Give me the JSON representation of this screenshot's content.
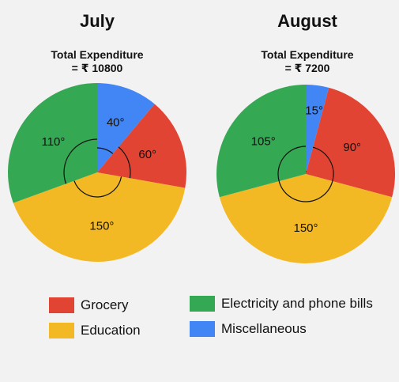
{
  "chart_data": [
    {
      "type": "pie",
      "title": "July",
      "subtitle": "Total Expenditure",
      "total_text": "= ₹ 10800",
      "slices": [
        {
          "name": "Miscellaneous",
          "angle": 40,
          "label": "40°",
          "color": "#4285f4"
        },
        {
          "name": "Grocery",
          "angle": 60,
          "label": "60°",
          "color": "#e24434"
        },
        {
          "name": "Education",
          "angle": 150,
          "label": "150°",
          "color": "#f2b925"
        },
        {
          "name": "Electricity and phone bills",
          "angle": 110,
          "label": "110°",
          "color": "#35a853"
        }
      ]
    },
    {
      "type": "pie",
      "title": "August",
      "subtitle": "Total Expenditure",
      "total_text": "= ₹ 7200",
      "slices": [
        {
          "name": "Miscellaneous",
          "angle": 15,
          "label": "15°",
          "color": "#4285f4"
        },
        {
          "name": "Grocery",
          "angle": 90,
          "label": "90°",
          "color": "#e24434"
        },
        {
          "name": "Education",
          "angle": 150,
          "label": "150°",
          "color": "#f2b925"
        },
        {
          "name": "Electricity and phone bills",
          "angle": 105,
          "label": "105°",
          "color": "#35a853"
        }
      ]
    }
  ],
  "legend": [
    {
      "label": "Grocery",
      "color": "#e24434"
    },
    {
      "label": "Education",
      "color": "#f2b925"
    },
    {
      "label": "Electricity and phone bills",
      "color": "#35a853"
    },
    {
      "label": "Miscellaneous",
      "color": "#4285f4"
    }
  ]
}
